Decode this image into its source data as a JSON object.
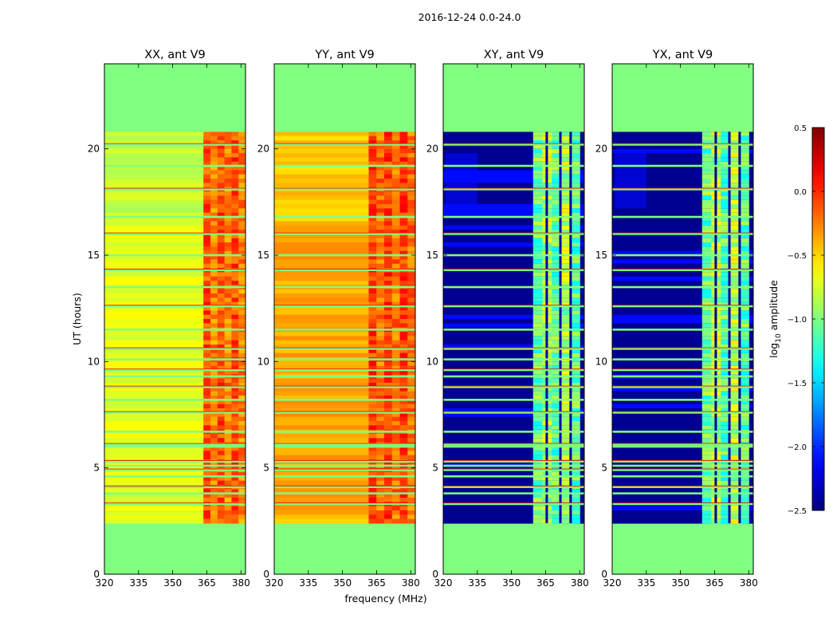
{
  "chart_data": {
    "type": "heatmap",
    "suptitle": "2016-12-24 0.0-24.0",
    "xlabel": "frequency (MHz)",
    "ylabel": "UT (hours)",
    "xlim": [
      320,
      382
    ],
    "ylim": [
      0,
      24
    ],
    "xticks": [
      320,
      335,
      350,
      365,
      380
    ],
    "yticks": [
      0,
      5,
      10,
      15,
      20
    ],
    "data_time_range": [
      2.4,
      20.8
    ],
    "panels": [
      {
        "title": "XX, ant V9",
        "product": "parallel",
        "base_log_amp": -0.78,
        "hot_start_mhz": 363.5,
        "hot_log_amp": -0.1
      },
      {
        "title": "YY, ant V9",
        "product": "parallel",
        "base_log_amp": -0.45,
        "hot_start_mhz": 361.5,
        "hot_log_amp": -0.05
      },
      {
        "title": "XY, ant V9",
        "product": "cross",
        "base_log_amp": -2.45,
        "band_mhz": [
          359.5,
          380
        ],
        "band_log_amp": -1.1,
        "gap_columns_mhz": [
          365.5,
          371.5,
          376
        ]
      },
      {
        "title": "YX, ant V9",
        "product": "cross",
        "base_log_amp": -2.45,
        "band_mhz": [
          359.5,
          380
        ],
        "band_log_amp": -1.1,
        "gap_columns_mhz": [
          365.5,
          371.5,
          376
        ]
      }
    ],
    "masked_value": -1.0,
    "flagged_rows_hours": [
      3.3,
      3.8,
      4.1,
      4.6,
      4.9,
      5.1,
      5.3,
      6.0,
      6.1,
      6.7,
      7.6,
      8.2,
      8.8,
      9.3,
      9.6,
      10.1,
      10.6,
      11.5,
      12.6,
      13.5,
      14.3,
      15.0,
      16.0,
      16.8,
      18.1,
      19.2,
      20.2
    ],
    "colorbar": {
      "label": "log10 amplitude",
      "label_main": "log",
      "label_sub": "10",
      "label_rest": " amplitude",
      "range": [
        -2.5,
        0.5
      ],
      "ticks": [
        "0.5",
        "0.0",
        "−0.5",
        "−1.0",
        "−1.5",
        "−2.0",
        "−2.5"
      ],
      "tick_values": [
        0.5,
        0.0,
        -0.5,
        -1.0,
        -1.5,
        -2.0,
        -2.5
      ],
      "colormap": "jet"
    }
  }
}
